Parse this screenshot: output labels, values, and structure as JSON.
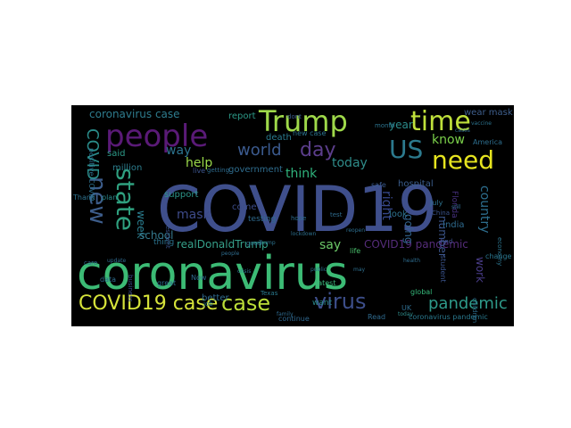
{
  "wordcloud": {
    "background": "#000000",
    "words": [
      {
        "text": "COVID19",
        "color": "#3f4f8c"
      },
      {
        "text": "coronavirus",
        "color": "#3cbb75"
      },
      {
        "text": "people",
        "color": "#5a1a77"
      },
      {
        "text": "Trump",
        "color": "#9fd94a"
      },
      {
        "text": "time",
        "color": "#bfe03b"
      },
      {
        "text": "need",
        "color": "#e6e41f"
      },
      {
        "text": "US",
        "color": "#2c7a8e"
      },
      {
        "text": "day",
        "color": "#5c3e8c"
      },
      {
        "text": "world",
        "color": "#3b5a8e"
      },
      {
        "text": "new",
        "color": "#3d5d8b"
      },
      {
        "text": "state",
        "color": "#2fa07f"
      },
      {
        "text": "virus",
        "color": "#3d4e8a"
      },
      {
        "text": "case",
        "color": "#bbdd38"
      },
      {
        "text": "COVID19 case",
        "color": "#d6e33a"
      },
      {
        "text": "pandemic",
        "color": "#2e9a8a"
      },
      {
        "text": "COVID",
        "color": "#2a8c8a"
      },
      {
        "text": "coronavirus case",
        "color": "#2e7c8e"
      },
      {
        "text": "realDonaldTrump",
        "color": "#36a08a"
      },
      {
        "text": "COVID19 pandemic",
        "color": "#552c7a"
      },
      {
        "text": "today",
        "color": "#2f8c8a"
      },
      {
        "text": "know",
        "color": "#7bd04a"
      },
      {
        "text": "help",
        "color": "#9ad94a"
      },
      {
        "text": "mask",
        "color": "#3e4b8a"
      },
      {
        "text": "week",
        "color": "#2a7c8e"
      },
      {
        "text": "school",
        "color": "#35798d"
      },
      {
        "text": "say",
        "color": "#6cc868"
      },
      {
        "text": "think",
        "color": "#2fb37c"
      },
      {
        "text": "government",
        "color": "#2f6d8e"
      },
      {
        "text": "country",
        "color": "#2d6e8e"
      },
      {
        "text": "work",
        "color": "#4a3d8a"
      },
      {
        "text": "number",
        "color": "#3c568c"
      },
      {
        "text": "going",
        "color": "#32648e"
      },
      {
        "text": "year",
        "color": "#2b8c8c"
      },
      {
        "text": "way",
        "color": "#2c738e"
      },
      {
        "text": "right",
        "color": "#36478a"
      },
      {
        "text": "report",
        "color": "#2c9a88"
      },
      {
        "text": "death",
        "color": "#2a7a8e"
      },
      {
        "text": "wear mask",
        "color": "#3e5e8c"
      },
      {
        "text": "said",
        "color": "#2d9b89"
      },
      {
        "text": "million",
        "color": "#2c7d8e"
      },
      {
        "text": "today",
        "color": "#2f8c8a"
      },
      {
        "text": "hospital",
        "color": "#3a5d8c"
      },
      {
        "text": "India",
        "color": "#2e6a8e"
      },
      {
        "text": "Florida",
        "color": "#46307e"
      },
      {
        "text": "positive COVID",
        "color": "#2d708e"
      },
      {
        "text": "Thank",
        "color": "#2d728e"
      },
      {
        "text": "plan",
        "color": "#2b8a8c"
      },
      {
        "text": "support",
        "color": "#2c9488"
      },
      {
        "text": "come",
        "color": "#3d4d8a"
      },
      {
        "text": "testing",
        "color": "#2f6a8e"
      },
      {
        "text": "better",
        "color": "#2f6b8e"
      },
      {
        "text": "thing",
        "color": "#2c738e"
      },
      {
        "text": "life",
        "color": "#4ac06c"
      },
      {
        "text": "look",
        "color": "#2d728e"
      },
      {
        "text": "July",
        "color": "#2c728e"
      },
      {
        "text": "student",
        "color": "#3a538b"
      },
      {
        "text": "change",
        "color": "#2a768e"
      },
      {
        "text": "data",
        "color": "#2d6e8e"
      },
      {
        "text": "want",
        "color": "#2c8a8c"
      },
      {
        "text": "global",
        "color": "#35b779"
      },
      {
        "text": "UK",
        "color": "#2e6c8e"
      },
      {
        "text": "latest",
        "color": "#3ab57a"
      },
      {
        "text": "coronavirus pandemic",
        "color": "#2a798e"
      },
      {
        "text": "continue",
        "color": "#2f678e"
      },
      {
        "text": "business",
        "color": "#3b4a8a"
      },
      {
        "text": "great",
        "color": "#2d6d8e"
      },
      {
        "text": "Now",
        "color": "#2e6a8e"
      },
      {
        "text": "job",
        "color": "#2a7a8e"
      },
      {
        "text": "dont",
        "color": "#3a5c8c"
      },
      {
        "text": "safe",
        "color": "#38588c"
      },
      {
        "text": "new case",
        "color": "#2b738e"
      },
      {
        "text": "hope",
        "color": "#2e6d8e"
      },
      {
        "text": "find",
        "color": "#3c4f8a"
      },
      {
        "text": "economy",
        "color": "#2c748e"
      },
      {
        "text": "update",
        "color": "#2f6a8e"
      },
      {
        "text": "America",
        "color": "#2d6e8e"
      },
      {
        "text": "President",
        "color": "#3a548c"
      },
      {
        "text": "Texas",
        "color": "#2a7a8e"
      },
      {
        "text": "live",
        "color": "#3b538b"
      },
      {
        "text": "getting",
        "color": "#2e6b8e"
      },
      {
        "text": "good",
        "color": "#2c728e"
      },
      {
        "text": "test",
        "color": "#2e6b8e"
      },
      {
        "text": "China",
        "color": "#3a538b"
      },
      {
        "text": "children",
        "color": "#2d6e8e"
      },
      {
        "text": "month",
        "color": "#2c738e"
      },
      {
        "text": "Read",
        "color": "#2f6a8e"
      },
      {
        "text": "lockdown",
        "color": "#2d708e"
      },
      {
        "text": "health",
        "color": "#2e6c8e"
      },
      {
        "text": "care",
        "color": "#2f6a8e"
      },
      {
        "text": "may",
        "color": "#2d6f8e"
      },
      {
        "text": "people",
        "color": "#2e6c8e"
      },
      {
        "text": "Trump",
        "color": "#2c738e"
      },
      {
        "text": "still",
        "color": "#2f6a8e"
      },
      {
        "text": "reopen",
        "color": "#2d6e8e"
      },
      {
        "text": "vaccine",
        "color": "#2c748e"
      },
      {
        "text": "cases",
        "color": "#2e6b8e"
      },
      {
        "text": "crisis",
        "color": "#2d6f8e"
      },
      {
        "text": "family",
        "color": "#2f6a8e"
      },
      {
        "text": "public",
        "color": "#2c728e"
      }
    ]
  }
}
